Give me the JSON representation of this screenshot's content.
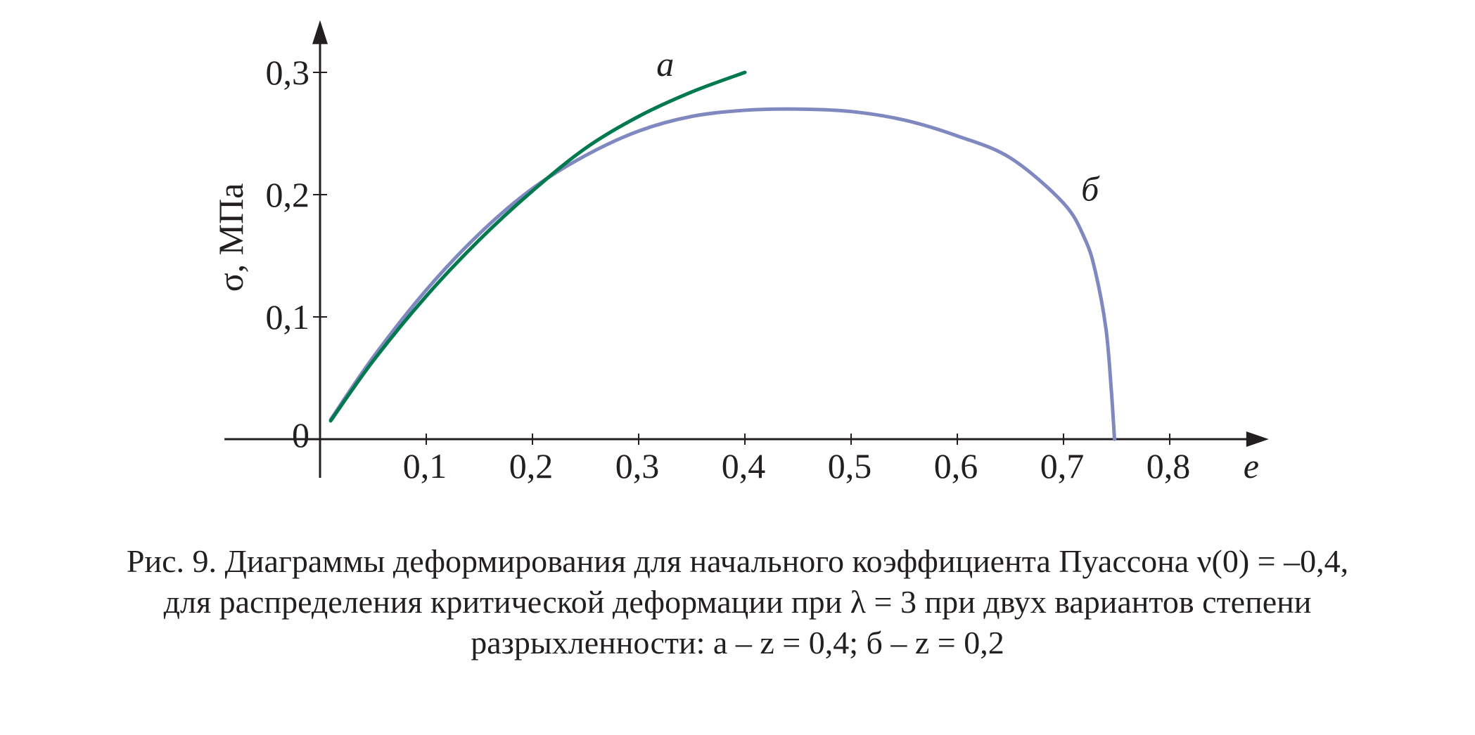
{
  "chart_data": {
    "type": "line",
    "ylabel": "σ, МПа",
    "xlabel": "e",
    "xlim": [
      -0.09,
      0.88
    ],
    "ylim": [
      0,
      0.33
    ],
    "x_ticks": [
      {
        "value": 0.1,
        "label": "0,1"
      },
      {
        "value": 0.2,
        "label": "0,2"
      },
      {
        "value": 0.3,
        "label": "0,3"
      },
      {
        "value": 0.4,
        "label": "0,4"
      },
      {
        "value": 0.5,
        "label": "0,5"
      },
      {
        "value": 0.6,
        "label": "0,6"
      },
      {
        "value": 0.7,
        "label": "0,7"
      },
      {
        "value": 0.8,
        "label": "0,8"
      }
    ],
    "y_ticks": [
      {
        "value": 0,
        "label": "0"
      },
      {
        "value": 0.1,
        "label": "0,1"
      },
      {
        "value": 0.2,
        "label": "0,2"
      },
      {
        "value": 0.3,
        "label": "0,3"
      }
    ],
    "grid": false,
    "series": [
      {
        "name": "а",
        "color": "#007a4d",
        "x": [
          0.01,
          0.05,
          0.1,
          0.15,
          0.2,
          0.25,
          0.3,
          0.35,
          0.4
        ],
        "y": [
          0.015,
          0.064,
          0.117,
          0.163,
          0.203,
          0.238,
          0.264,
          0.284,
          0.3
        ]
      },
      {
        "name": "б",
        "color": "#8088c0",
        "x": [
          0.01,
          0.05,
          0.1,
          0.15,
          0.2,
          0.25,
          0.3,
          0.35,
          0.4,
          0.45,
          0.5,
          0.55,
          0.6,
          0.65,
          0.7,
          0.72,
          0.73,
          0.74,
          0.745,
          0.748
        ],
        "y": [
          0.016,
          0.067,
          0.122,
          0.168,
          0.205,
          0.232,
          0.252,
          0.264,
          0.269,
          0.27,
          0.268,
          0.261,
          0.248,
          0.23,
          0.193,
          0.164,
          0.137,
          0.09,
          0.04,
          0
        ]
      }
    ]
  },
  "caption": {
    "line1": "Рис. 9. Диаграммы деформирования для начального коэффициента Пуассона ν(0) = –0,4,",
    "line2": "для распределения критической деформации при λ = 3 при двух вариантов степени",
    "line3": "разрыхленности: а – z = 0,4; б – z = 0,2"
  }
}
